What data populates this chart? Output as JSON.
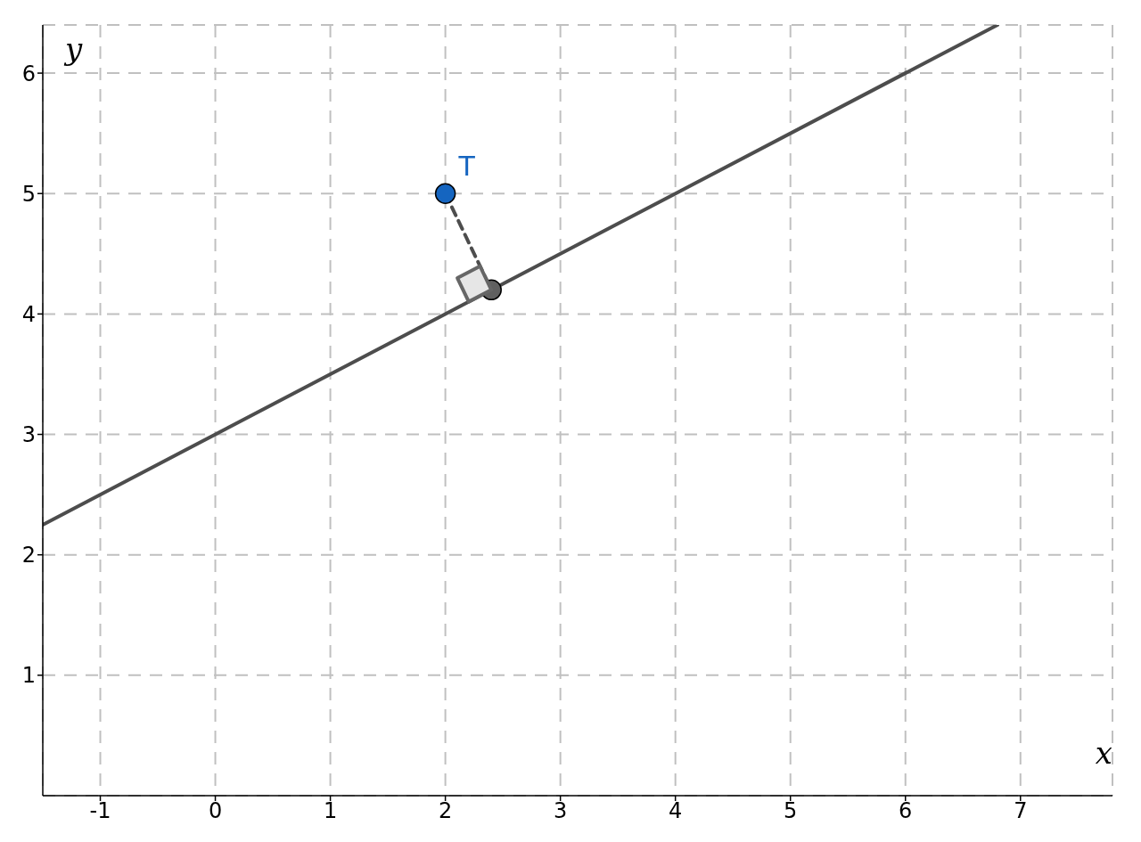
{
  "chart_data": {
    "type": "line",
    "xlabel": "x",
    "ylabel": "y",
    "xlim": [
      -1.5,
      7.8
    ],
    "ylim": [
      0,
      6.4
    ],
    "xticks": [
      -1,
      0,
      1,
      2,
      3,
      4,
      5,
      6,
      7
    ],
    "yticks": [
      1,
      2,
      3,
      4,
      5,
      6
    ],
    "grid": true,
    "legend": false,
    "marker": "none",
    "series": [
      {
        "color": "#4d4d4d",
        "x": [
          -1.5,
          6.8
        ],
        "values": [
          2.25,
          6.4
        ]
      },
      {
        "color": "#4d4d4d",
        "line_style": "dashed",
        "x": [
          2,
          2.4
        ],
        "values": [
          5,
          4.2
        ]
      },
      {
        "type": "scatter",
        "marker": "circle",
        "name": "T",
        "color": "#1565c0",
        "x": [
          2
        ],
        "values": [
          5
        ]
      },
      {
        "type": "scatter",
        "marker": "circle",
        "color": "#606060",
        "x": [
          2.4
        ],
        "values": [
          4.2
        ]
      }
    ]
  }
}
